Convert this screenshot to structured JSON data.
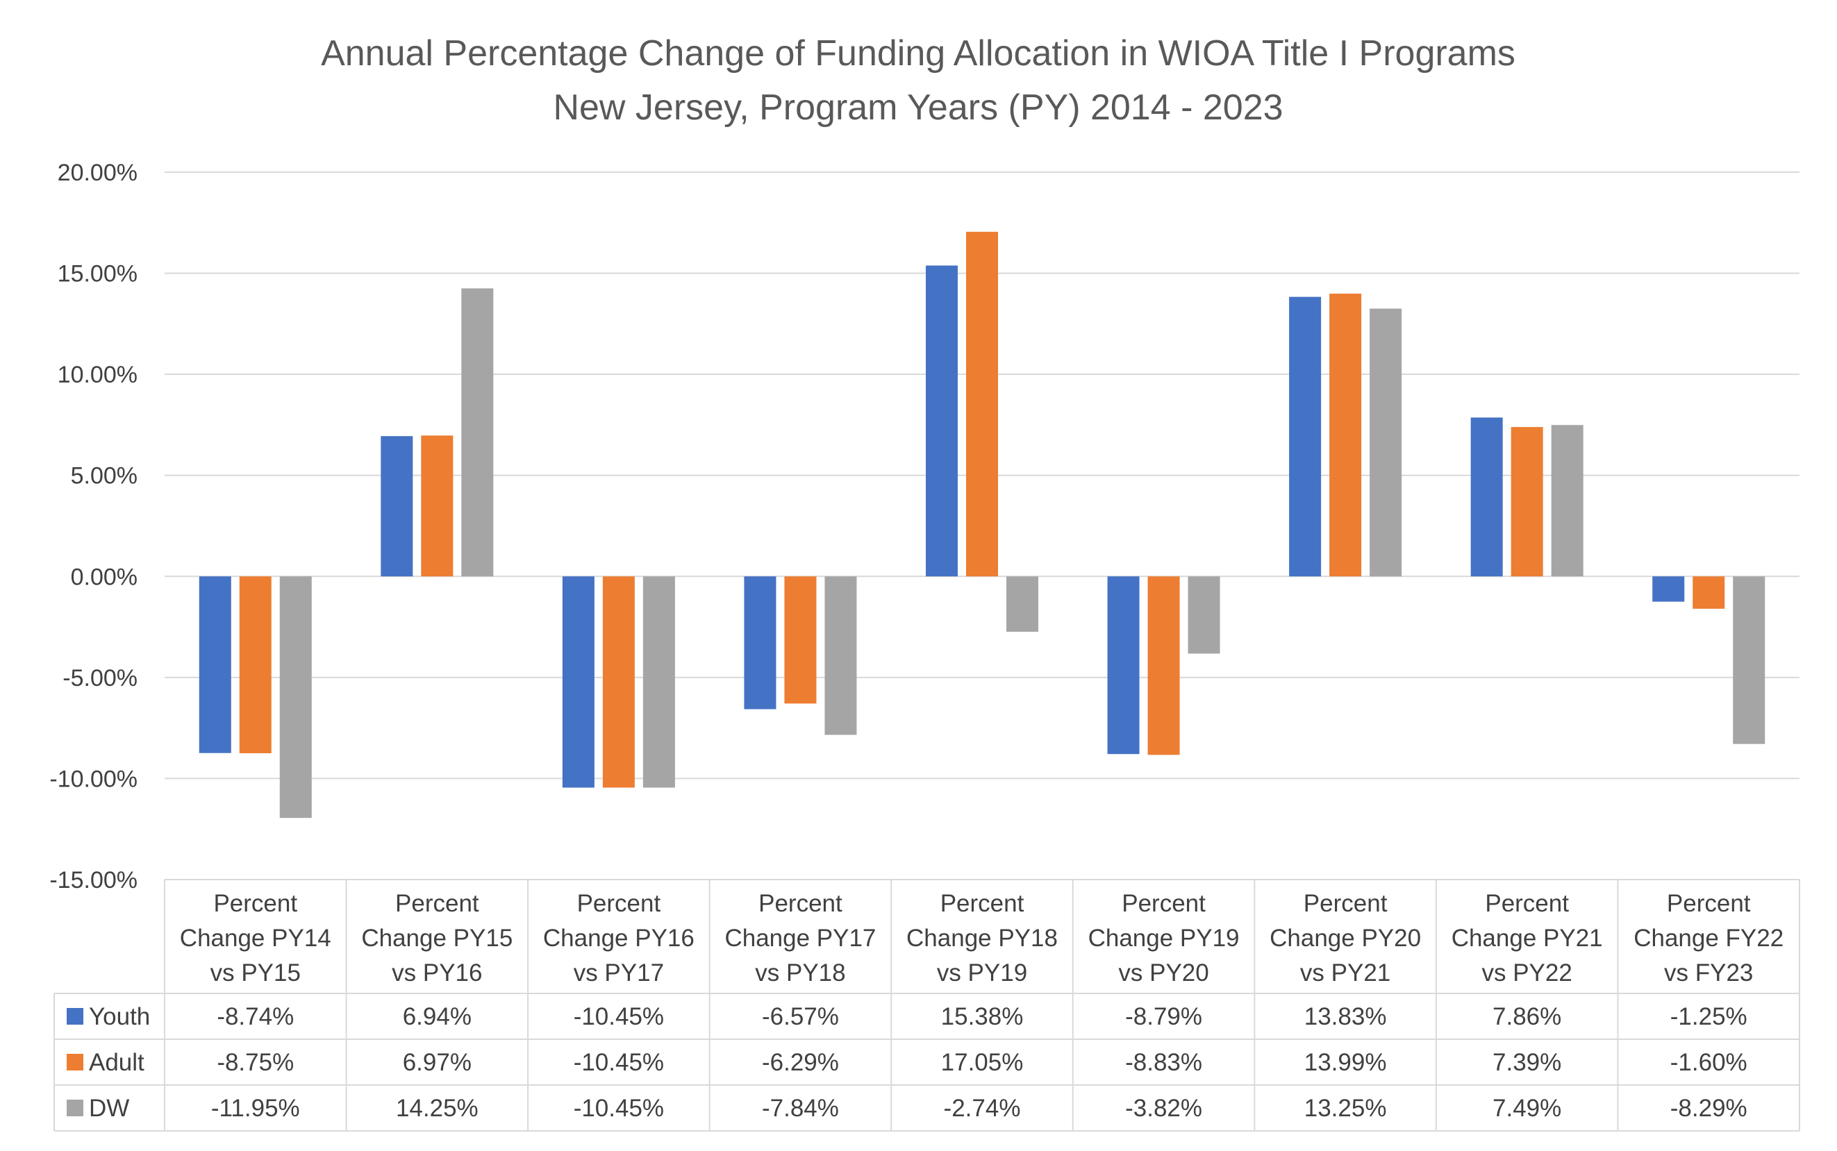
{
  "chart_data": {
    "type": "bar",
    "title": "Annual Percentage Change of Funding Allocation in WIOA Title I Programs",
    "subtitle": "New Jersey, Program Years (PY) 2014 - 2023",
    "xlabel": "",
    "ylabel": "",
    "ylim": [
      -15,
      20
    ],
    "y_ticks": [
      20,
      15,
      10,
      5,
      0,
      -5,
      -10,
      -15
    ],
    "y_tick_labels": [
      "20.00%",
      "15.00%",
      "10.00%",
      "5.00%",
      "0.00%",
      "-5.00%",
      "-10.00%",
      "-15.00%"
    ],
    "grid": true,
    "legend": "data-table",
    "categories": [
      [
        "Percent",
        "Change PY14",
        "vs PY15"
      ],
      [
        "Percent",
        "Change PY15",
        "vs PY16"
      ],
      [
        "Percent",
        "Change PY16",
        "vs PY17"
      ],
      [
        "Percent",
        "Change PY17",
        "vs PY18"
      ],
      [
        "Percent",
        "Change PY18",
        "vs PY19"
      ],
      [
        "Percent",
        "Change PY19",
        "vs PY20"
      ],
      [
        "Percent",
        "Change PY20",
        "vs PY21"
      ],
      [
        "Percent",
        "Change PY21",
        "vs PY22"
      ],
      [
        "Percent",
        "Change FY22",
        "vs FY23"
      ]
    ],
    "series": [
      {
        "name": "Youth",
        "color": "#4472C4",
        "values": [
          -8.74,
          6.94,
          -10.45,
          -6.57,
          15.38,
          -8.79,
          13.83,
          7.86,
          -1.25
        ],
        "labels": [
          "-8.74%",
          "6.94%",
          "-10.45%",
          "-6.57%",
          "15.38%",
          "-8.79%",
          "13.83%",
          "7.86%",
          "-1.25%"
        ]
      },
      {
        "name": "Adult",
        "color": "#ED7D31",
        "values": [
          -8.75,
          6.97,
          -10.45,
          -6.29,
          17.05,
          -8.83,
          13.99,
          7.39,
          -1.6
        ],
        "labels": [
          "-8.75%",
          "6.97%",
          "-10.45%",
          "-6.29%",
          "17.05%",
          "-8.83%",
          "13.99%",
          "7.39%",
          "-1.60%"
        ]
      },
      {
        "name": "DW",
        "color": "#A5A5A5",
        "values": [
          -11.95,
          14.25,
          -10.45,
          -7.84,
          -2.74,
          -3.82,
          13.25,
          7.49,
          -8.29
        ],
        "labels": [
          "-11.95%",
          "14.25%",
          "-10.45%",
          "-7.84%",
          "-2.74%",
          "-3.82%",
          "13.25%",
          "7.49%",
          "-8.29%"
        ]
      }
    ]
  }
}
